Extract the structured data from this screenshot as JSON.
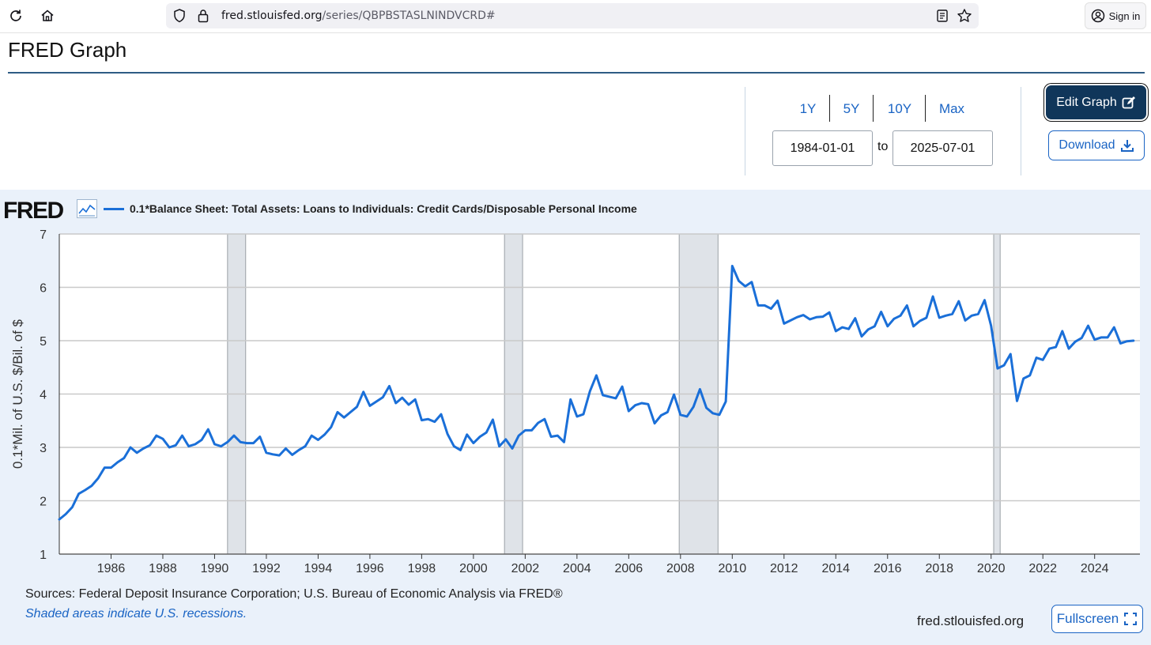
{
  "browser": {
    "url_domain": "fred.stlouisfed.org",
    "url_path": "/series/QBPBSTASLNINDVCRD#",
    "signin_label": "Sign in"
  },
  "header": {
    "title": "FRED Graph"
  },
  "range": {
    "buttons": [
      "1Y",
      "5Y",
      "10Y",
      "Max"
    ],
    "start_date": "1984-01-01",
    "to_label": "to",
    "end_date": "2025-07-01"
  },
  "actions": {
    "edit_label": "Edit Graph",
    "download_label": "Download",
    "fullscreen_label": "Fullscreen"
  },
  "footer": {
    "sources": "Sources: Federal Deposit Insurance Corporation; U.S. Bureau of Economic Analysis via FRED®",
    "recession_note": "Shaded areas indicate U.S. recessions.",
    "site": "fred.stlouisfed.org"
  },
  "logo": {
    "text": "FRED"
  },
  "colors": {
    "series": "#1a6fd8",
    "recession": "#dfe3e8",
    "grid": "#c9c9c9",
    "accent": "#10365a",
    "link": "#1a64c4"
  },
  "chart_data": {
    "type": "line",
    "title": "",
    "legend": "0.1*Balance Sheet: Total Assets: Loans to Individuals: Credit Cards/Disposable Personal Income",
    "ylabel": "0.1*Mil. of U.S. $/Bil. of $",
    "xlabel": "",
    "ylim": [
      1,
      7
    ],
    "xlim": [
      1984.0,
      2025.75
    ],
    "yticks": [
      1,
      2,
      3,
      4,
      5,
      6,
      7
    ],
    "xticks": [
      1986,
      1988,
      1990,
      1992,
      1994,
      1996,
      1998,
      2000,
      2002,
      2004,
      2006,
      2008,
      2010,
      2012,
      2014,
      2016,
      2018,
      2020,
      2022,
      2024
    ],
    "grid": true,
    "recessions": [
      [
        1990.5,
        1991.2
      ],
      [
        2001.2,
        2001.9
      ],
      [
        2007.95,
        2009.45
      ],
      [
        2020.1,
        2020.35
      ]
    ],
    "series": [
      {
        "name": "0.1*Balance Sheet: Total Assets: Loans to Individuals: Credit Cards/Disposable Personal Income",
        "start": 1984.0,
        "step": 0.25,
        "values": [
          1.65,
          1.75,
          1.88,
          2.13,
          2.2,
          2.28,
          2.42,
          2.62,
          2.62,
          2.72,
          2.8,
          3.0,
          2.9,
          2.98,
          3.04,
          3.22,
          3.16,
          3.0,
          3.04,
          3.22,
          3.02,
          3.06,
          3.14,
          3.34,
          3.06,
          3.02,
          3.1,
          3.22,
          3.1,
          3.08,
          3.08,
          3.2,
          2.9,
          2.87,
          2.85,
          2.98,
          2.86,
          2.95,
          3.02,
          3.22,
          3.14,
          3.24,
          3.38,
          3.66,
          3.56,
          3.66,
          3.76,
          4.04,
          3.78,
          3.86,
          3.94,
          4.15,
          3.83,
          3.93,
          3.8,
          3.9,
          3.51,
          3.53,
          3.48,
          3.62,
          3.25,
          3.02,
          2.95,
          3.24,
          3.08,
          3.2,
          3.28,
          3.52,
          3.02,
          3.15,
          2.98,
          3.22,
          3.32,
          3.32,
          3.46,
          3.53,
          3.2,
          3.22,
          3.1,
          3.9,
          3.58,
          3.62,
          4.05,
          4.35,
          3.98,
          3.95,
          3.92,
          4.14,
          3.68,
          3.79,
          3.83,
          3.81,
          3.45,
          3.6,
          3.66,
          3.99,
          3.61,
          3.58,
          3.76,
          4.09,
          3.74,
          3.64,
          3.61,
          3.86,
          6.4,
          6.12,
          6.02,
          6.1,
          5.66,
          5.66,
          5.6,
          5.75,
          5.32,
          5.38,
          5.44,
          5.48,
          5.4,
          5.44,
          5.45,
          5.53,
          5.18,
          5.25,
          5.22,
          5.42,
          5.08,
          5.21,
          5.27,
          5.54,
          5.27,
          5.41,
          5.47,
          5.66,
          5.27,
          5.37,
          5.43,
          5.83,
          5.43,
          5.47,
          5.5,
          5.74,
          5.38,
          5.47,
          5.5,
          5.76,
          5.28,
          4.48,
          4.54,
          4.75,
          3.87,
          4.29,
          4.35,
          4.68,
          4.64,
          4.85,
          4.88,
          5.18,
          4.85,
          4.98,
          5.05,
          5.28,
          5.02,
          5.06,
          5.06,
          5.25,
          4.95,
          4.99,
          5.0
        ]
      }
    ]
  }
}
